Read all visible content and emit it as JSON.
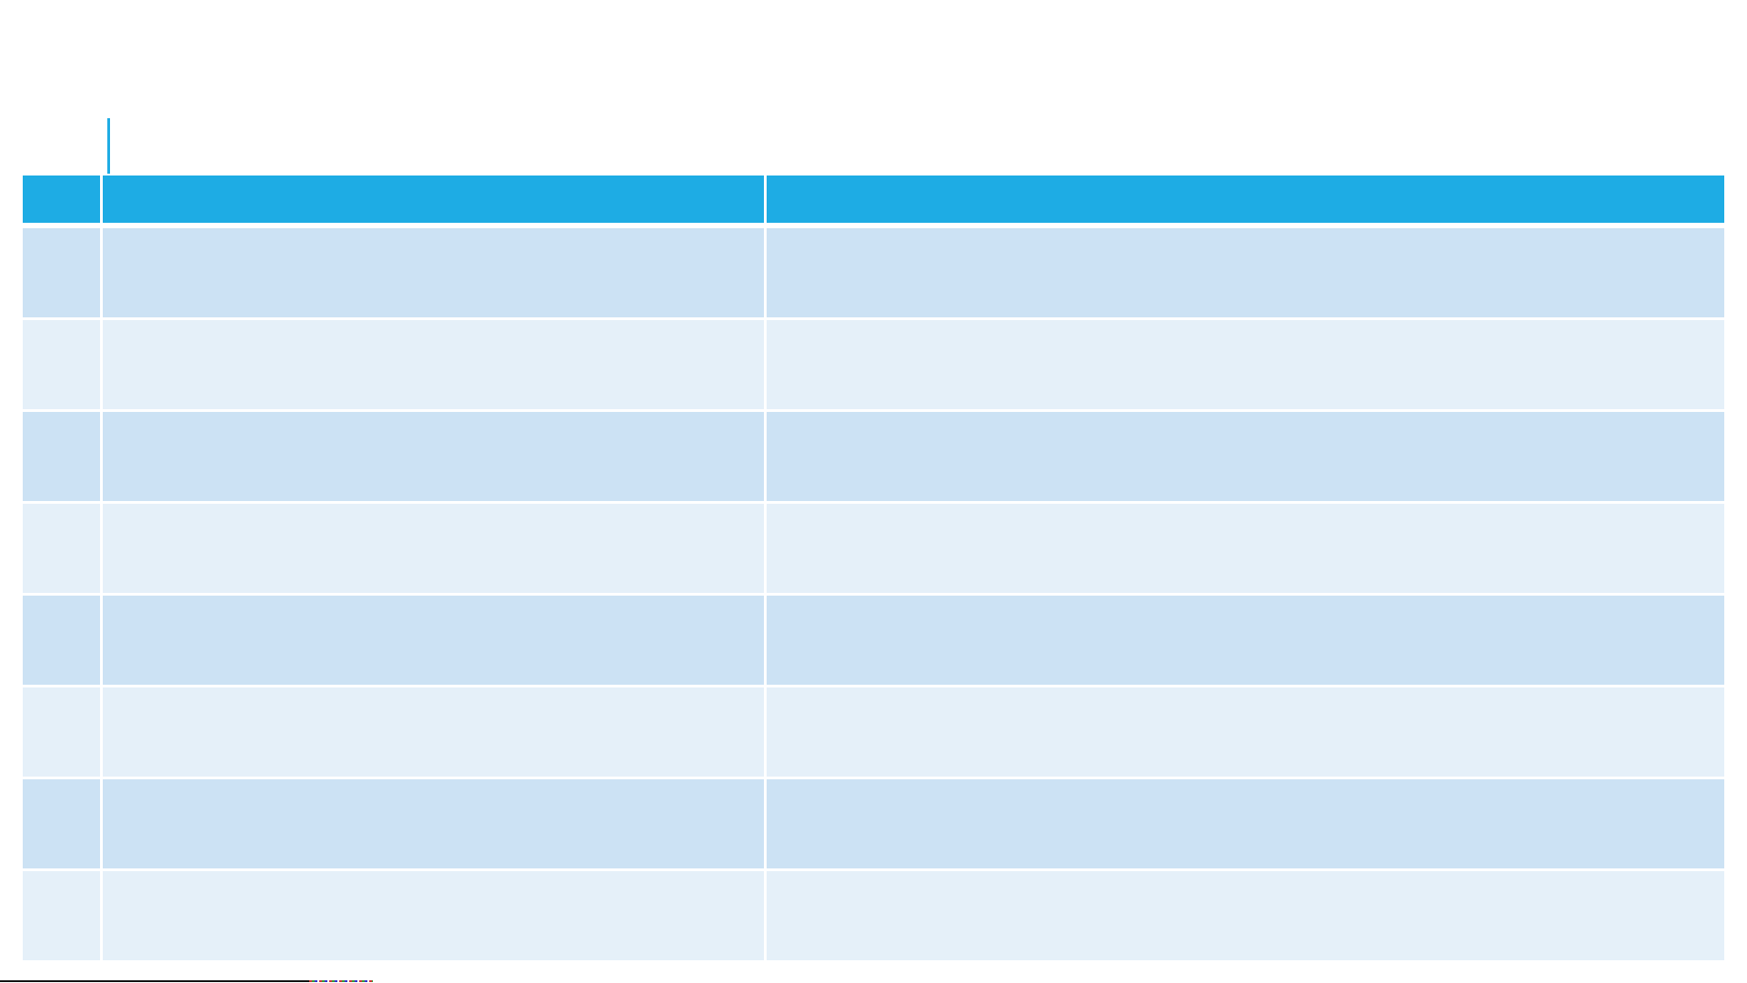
{
  "table": {
    "columns": 3,
    "header": [
      "",
      "",
      ""
    ],
    "rows": [
      [
        "",
        "",
        ""
      ],
      [
        "",
        "",
        ""
      ],
      [
        "",
        "",
        ""
      ],
      [
        "",
        "",
        ""
      ],
      [
        "",
        "",
        ""
      ],
      [
        "",
        "",
        ""
      ],
      [
        "",
        "",
        ""
      ],
      [
        "",
        "",
        ""
      ]
    ]
  },
  "colors": {
    "header": "#1eace4",
    "row_dark": "#cce2f4",
    "row_light": "#e5f0f9",
    "cursor": "#1eace4"
  }
}
